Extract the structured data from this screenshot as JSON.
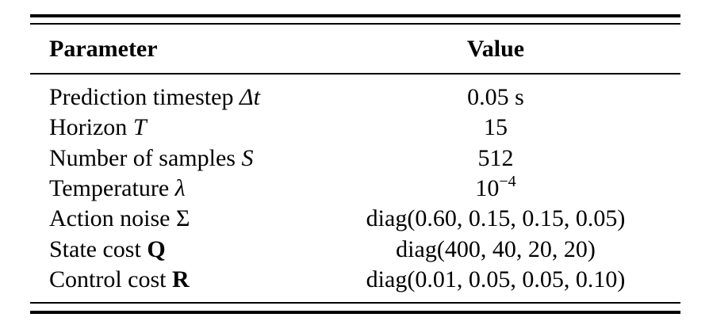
{
  "table": {
    "header": [
      "Parameter",
      "Value"
    ],
    "rows": [
      {
        "name": "Prediction timestep",
        "symbol": "Δt",
        "value": "0.05 s"
      },
      {
        "name": "Horizon",
        "symbol": "T",
        "value": "15"
      },
      {
        "name": "Number of samples",
        "symbol": "S",
        "value": "512"
      },
      {
        "name": "Temperature",
        "symbol": "λ",
        "value": "10",
        "exponent": "−4"
      },
      {
        "name": "Action noise",
        "symbol": "Σ",
        "value": "diag(0.60, 0.15, 0.15, 0.05)"
      },
      {
        "name": "State cost",
        "symbol": "Q",
        "value": "diag(400, 40, 20, 20)"
      },
      {
        "name": "Control cost",
        "symbol": "R",
        "value": "diag(0.01, 0.05, 0.05, 0.10)"
      }
    ]
  }
}
